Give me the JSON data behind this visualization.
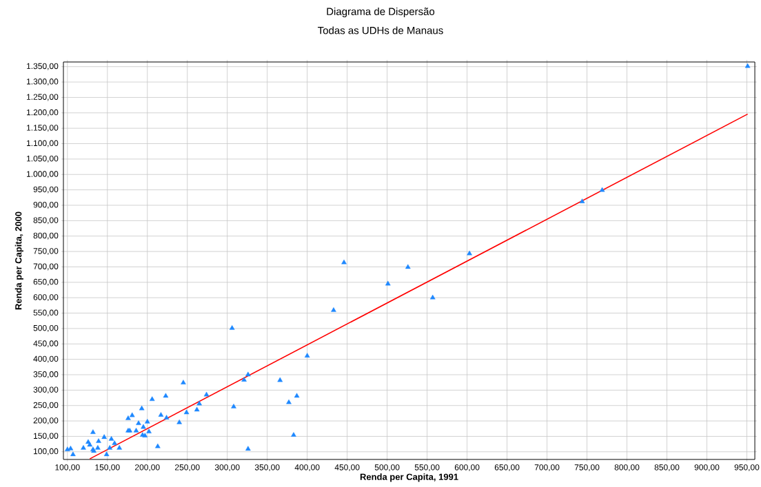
{
  "chart_data": {
    "type": "scatter",
    "title": "Diagrama de Dispersão",
    "subtitle": "Todas as UDHs de Manaus",
    "xlabel": "Renda per Capita, 1991",
    "ylabel": "Renda per Capita, 2000",
    "xlim": [
      95,
      960
    ],
    "ylim": [
      75,
      1365
    ],
    "xticks": [
      {
        "value": 100,
        "label": "100,00"
      },
      {
        "value": 150,
        "label": "150,00"
      },
      {
        "value": 200,
        "label": "200,00"
      },
      {
        "value": 250,
        "label": "250,00"
      },
      {
        "value": 300,
        "label": "300,00"
      },
      {
        "value": 350,
        "label": "350,00"
      },
      {
        "value": 400,
        "label": "400,00"
      },
      {
        "value": 450,
        "label": "450,00"
      },
      {
        "value": 500,
        "label": "500,00"
      },
      {
        "value": 550,
        "label": "550,00"
      },
      {
        "value": 600,
        "label": "600,00"
      },
      {
        "value": 650,
        "label": "650,00"
      },
      {
        "value": 700,
        "label": "700,00"
      },
      {
        "value": 750,
        "label": "750,00"
      },
      {
        "value": 800,
        "label": "800,00"
      },
      {
        "value": 850,
        "label": "850,00"
      },
      {
        "value": 900,
        "label": "900,00"
      },
      {
        "value": 950,
        "label": "950,00"
      }
    ],
    "yticks": [
      {
        "value": 100,
        "label": "100,00"
      },
      {
        "value": 150,
        "label": "150,00"
      },
      {
        "value": 200,
        "label": "200,00"
      },
      {
        "value": 250,
        "label": "250,00"
      },
      {
        "value": 300,
        "label": "300,00"
      },
      {
        "value": 350,
        "label": "350,00"
      },
      {
        "value": 400,
        "label": "400,00"
      },
      {
        "value": 450,
        "label": "450,00"
      },
      {
        "value": 500,
        "label": "500,00"
      },
      {
        "value": 550,
        "label": "550,00"
      },
      {
        "value": 600,
        "label": "600,00"
      },
      {
        "value": 650,
        "label": "650,00"
      },
      {
        "value": 700,
        "label": "700,00"
      },
      {
        "value": 750,
        "label": "750,00"
      },
      {
        "value": 800,
        "label": "800,00"
      },
      {
        "value": 850,
        "label": "850,00"
      },
      {
        "value": 900,
        "label": "900,00"
      },
      {
        "value": 950,
        "label": "950,00"
      },
      {
        "value": 1000,
        "label": "1.000,00"
      },
      {
        "value": 1050,
        "label": "1.050,00"
      },
      {
        "value": 1100,
        "label": "1.100,00"
      },
      {
        "value": 1150,
        "label": "1.150,00"
      },
      {
        "value": 1200,
        "label": "1.200,00"
      },
      {
        "value": 1250,
        "label": "1.250,00"
      },
      {
        "value": 1300,
        "label": "1.300,00"
      },
      {
        "value": 1350,
        "label": "1.350,00"
      }
    ],
    "grid": true,
    "marker": "triangle",
    "series": [
      {
        "color": "#1e88ff",
        "x": [
          100,
          104,
          107,
          120,
          126,
          128,
          132,
          132,
          133,
          138,
          139,
          146,
          149,
          153,
          155,
          159,
          165,
          176,
          181,
          176,
          178,
          186,
          189,
          194,
          195,
          197,
          200,
          202,
          206,
          193,
          213,
          217,
          223,
          224,
          240,
          249,
          306,
          400,
          245,
          326,
          321,
          366,
          387,
          377,
          274,
          265,
          262,
          308,
          383,
          326,
          951,
          769,
          744,
          603,
          446,
          526,
          501,
          557,
          433
        ],
        "values": [
          107,
          110,
          91,
          112,
          131,
          122,
          163,
          107,
          102,
          112,
          134,
          147,
          91,
          112,
          141,
          127,
          112,
          208,
          218,
          168,
          168,
          168,
          192,
          154,
          180,
          152,
          197,
          165,
          270,
          240,
          117,
          219,
          281,
          210,
          195,
          227,
          501,
          411,
          324,
          350,
          333,
          332,
          281,
          260,
          285,
          256,
          236,
          246,
          154,
          109,
          1351,
          949,
          912,
          743,
          714,
          699,
          645,
          600,
          559
        ]
      },
      {
        "type": "line",
        "marker": "none",
        "color": "#ff0000",
        "x": [
          128,
          951
        ],
        "values": [
          77,
          1196
        ]
      }
    ]
  }
}
